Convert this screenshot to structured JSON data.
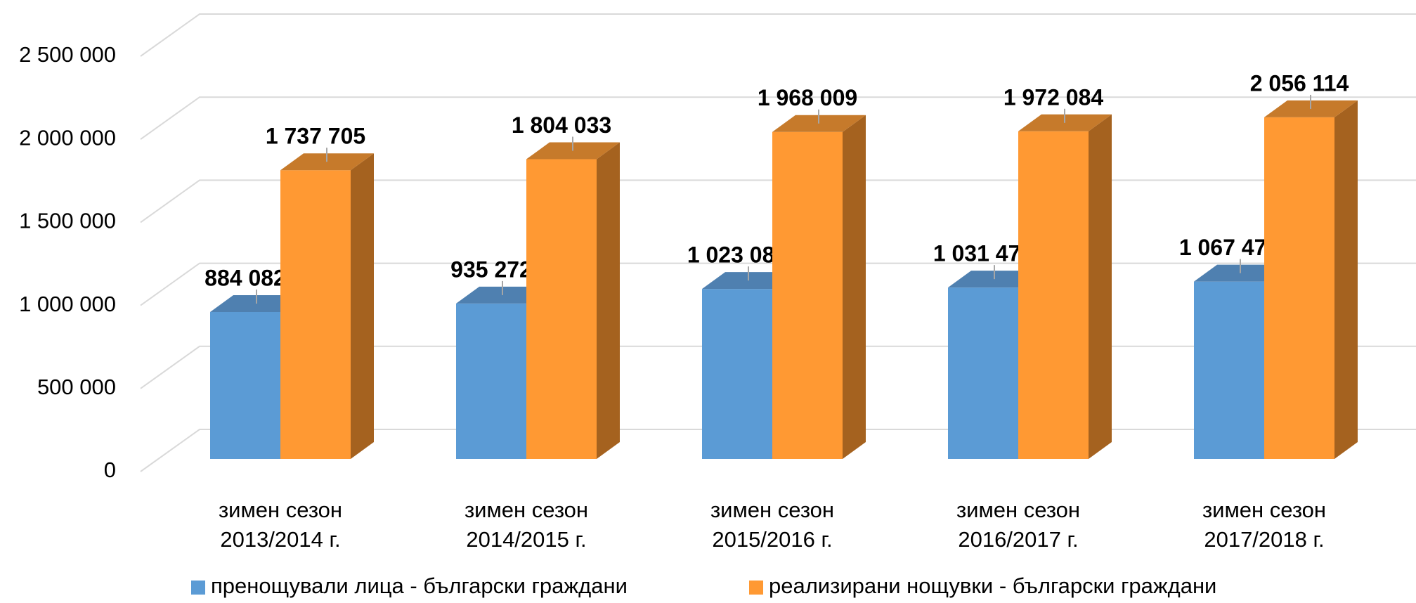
{
  "chart_data": {
    "type": "bar3d",
    "categories": [
      "зимен сезон\n2013/2014 г.",
      "зимен сезон\n2014/2015 г.",
      "зимен сезон\n2015/2016 г.",
      "зимен сезон\n2016/2017 г.",
      "зимен сезон\n2017/2018 г."
    ],
    "series": [
      {
        "name": "пренощували лица - български граждани",
        "color": "#5b9bd5",
        "side_color": "#41719c",
        "top_color": "#4f80b0",
        "values": [
          884082,
          935272,
          1023082,
          1031472,
          1067476
        ],
        "value_labels": [
          "884 082",
          "935 272",
          "1 023 082",
          "1 031 472",
          "1 067 476"
        ]
      },
      {
        "name": "реализирани нощувки - български граждани",
        "color": "#ff9933",
        "side_color": "#a5621f",
        "top_color": "#c67a2b",
        "values": [
          1737705,
          1804033,
          1968009,
          1972084,
          2056114
        ],
        "value_labels": [
          "1 737 705",
          "1 804 033",
          "1 968 009",
          "1 972 084",
          "2 056 114"
        ]
      }
    ],
    "ylim": [
      0,
      2500000
    ],
    "yticks": [
      0,
      {
        "value": 500000,
        "label": "500 000"
      },
      {
        "value": 1000000,
        "label": "1 000 000"
      },
      {
        "value": 1500000,
        "label": "1 500 000"
      },
      {
        "value": 2000000,
        "label": "2 000 000"
      },
      {
        "value": 2500000,
        "label": "2 500 000"
      }
    ],
    "grid": true,
    "legend": "bottom"
  }
}
